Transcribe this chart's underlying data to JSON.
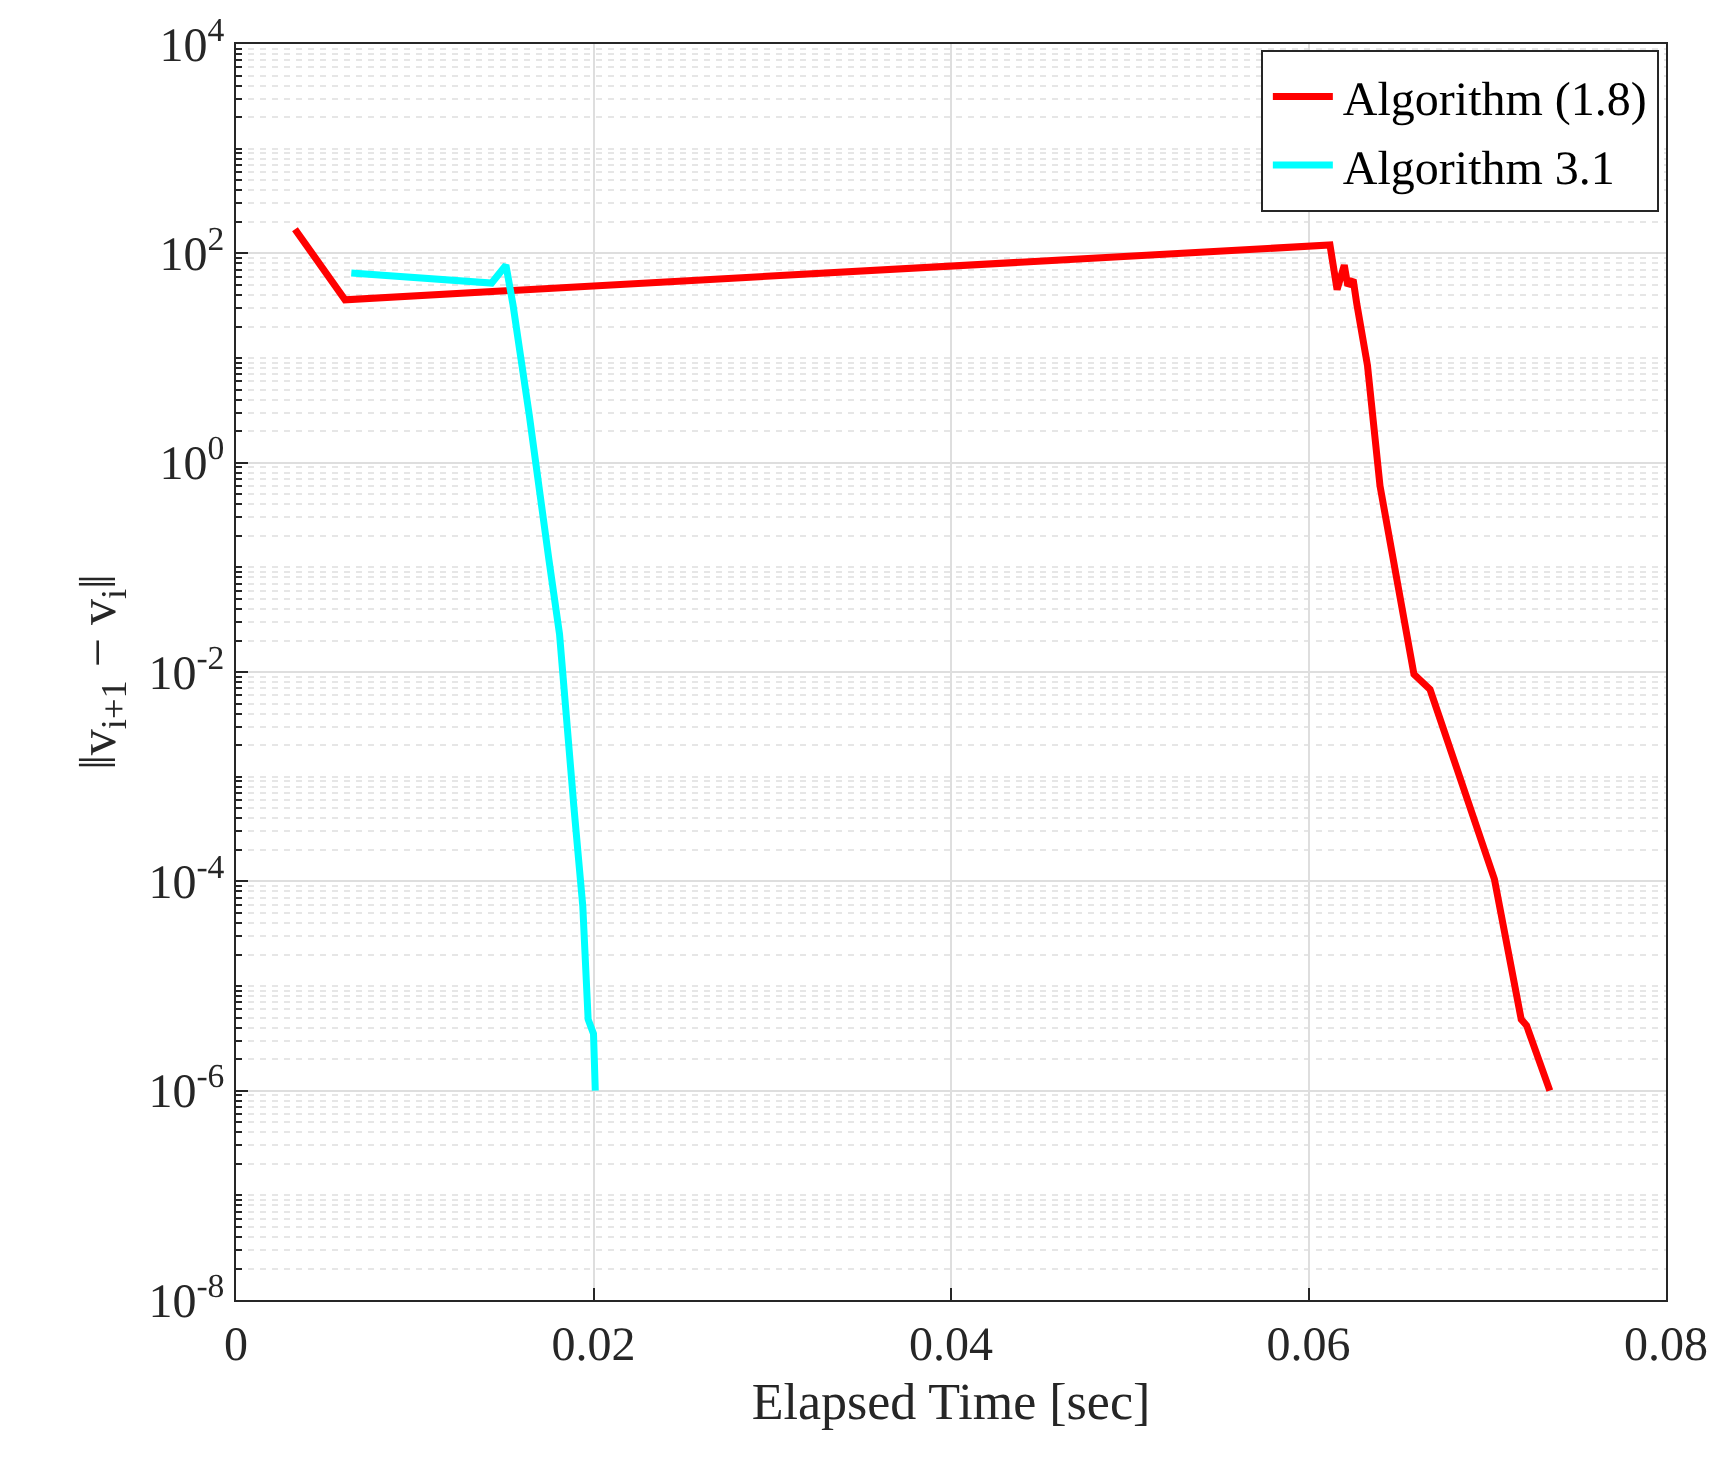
{
  "chart_data": {
    "type": "line",
    "xlabel": "Elapsed Time [sec]",
    "ylabel": "‖v$_{i+1}$ − v$_{i}$‖",
    "log": "y",
    "grid": true,
    "legend": "top right",
    "line_style": "solid",
    "marker": "none",
    "xlim": [
      0,
      0.08
    ],
    "xticks": [
      0,
      0.02,
      0.04,
      0.06,
      0.08
    ],
    "ylim": [
      1e-08,
      10000
    ],
    "yticks": [
      {
        "value": 1e-08,
        "label": "10$^{-8}$"
      },
      {
        "value": 1e-06,
        "label": "10$^{-6}$"
      },
      {
        "value": 0.0001,
        "label": "10$^{-4}$"
      },
      {
        "value": 0.01,
        "label": "10$^{-2}$"
      },
      {
        "value": 1,
        "label": "10$^{0}$"
      },
      {
        "value": 100,
        "label": "10$^{2}$"
      },
      {
        "value": 10000,
        "label": "10$^{4}$"
      }
    ],
    "series": [
      {
        "name": "Algorithm (1.8)",
        "color": "#ff0000",
        "x": [
          0.0033,
          0.0061,
          0.0612,
          0.0616,
          0.062,
          0.0622,
          0.0625,
          0.0627,
          0.0633,
          0.064,
          0.0659,
          0.0668,
          0.0704,
          0.0719,
          0.0722,
          0.0735
        ],
        "values": [
          170,
          36,
          120,
          45,
          77,
          49,
          56,
          33,
          8.5,
          0.6,
          0.0095,
          0.0068,
          0.000105,
          4.8e-06,
          4.2e-06,
          1e-06
        ]
      },
      {
        "name": "Algorithm 3.1",
        "color": "#00ffff",
        "x": [
          0.00645,
          0.0143,
          0.0151,
          0.0155,
          0.0159,
          0.0164,
          0.017,
          0.0175,
          0.0181,
          0.0189,
          0.0194,
          0.0197,
          0.02,
          0.0201
        ],
        "values": [
          65,
          52,
          77,
          32,
          11,
          2.9,
          0.51,
          0.12,
          0.023,
          0.00052,
          5.8e-05,
          4.8e-06,
          3.5e-06,
          1e-06
        ]
      }
    ]
  }
}
